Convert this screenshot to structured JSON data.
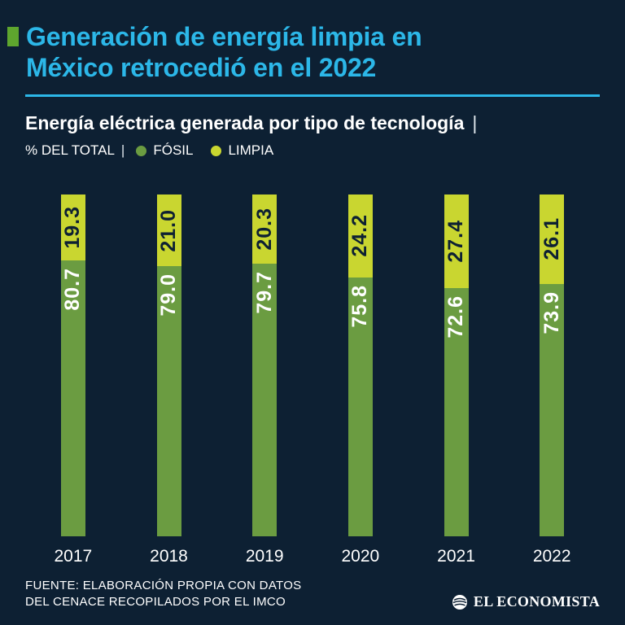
{
  "page": {
    "background": "#0d2033",
    "accent_cyan": "#2cb7e8",
    "marker_green": "#5ea62e"
  },
  "header": {
    "title_line1": "Generación de energía limpia en",
    "title_line2": "México retrocedió en el 2022",
    "subtitle": "Energía eléctrica generada por tipo de tecnología",
    "separator": "|",
    "legend_prefix": "% DEL TOTAL",
    "legend_separator": "|",
    "legend": [
      {
        "label": "FÓSIL",
        "color": "#6b9c41"
      },
      {
        "label": "LIMPIA",
        "color": "#c9d630"
      }
    ]
  },
  "chart_data": {
    "type": "bar",
    "stacked": true,
    "title": "Energía eléctrica generada por tipo de tecnología",
    "unit": "% DEL TOTAL",
    "categories": [
      "2017",
      "2018",
      "2019",
      "2020",
      "2021",
      "2022"
    ],
    "series": [
      {
        "name": "FÓSIL",
        "color": "#6b9c41",
        "values": [
          80.7,
          79.0,
          79.7,
          75.8,
          72.6,
          73.9
        ],
        "labels": [
          "80.7",
          "79.0",
          "79.7",
          "75.8",
          "72.6",
          "73.9"
        ]
      },
      {
        "name": "LIMPIA",
        "color": "#c9d630",
        "values": [
          19.3,
          21.0,
          20.3,
          24.2,
          27.4,
          26.1
        ],
        "labels": [
          "19.3",
          "21.0",
          "20.3",
          "24.2",
          "27.4",
          "26.1"
        ]
      }
    ],
    "ylim": [
      0,
      100
    ],
    "legend_position": "top",
    "value_labels_rotated": true
  },
  "footer": {
    "source_line1": "FUENTE: ELABORACIÓN PROPIA CON DATOS",
    "source_line2": "DEL CENACE RECOPILADOS POR EL IMCO",
    "brand": "EL ECONOMISTA"
  }
}
